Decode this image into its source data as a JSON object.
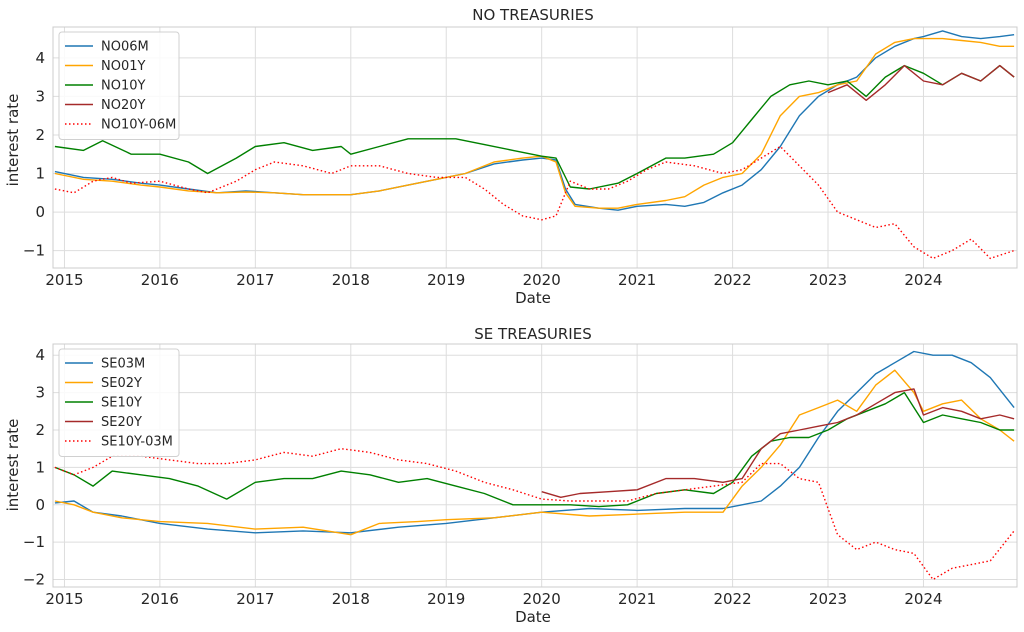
{
  "colors": {
    "blue": "#1f77b4",
    "orange": "#ffa500",
    "green": "#008000",
    "darkred": "#a52a2a",
    "red": "#ff0000",
    "grid": "#dddddd",
    "plot_bg": "#ffffff"
  },
  "chart_data": [
    {
      "type": "line",
      "title": "NO TREASURIES",
      "xlabel": "Date",
      "ylabel": "interest rate",
      "xlim": [
        2014.88,
        2024.98
      ],
      "ylim": [
        -1.45,
        4.8
      ],
      "x_ticks": [
        2015,
        2016,
        2017,
        2018,
        2019,
        2020,
        2021,
        2022,
        2023,
        2024
      ],
      "x_tick_labels": [
        "2015",
        "2016",
        "2017",
        "2018",
        "2019",
        "2020",
        "2021",
        "2022",
        "2023",
        "2024"
      ],
      "y_ticks": [
        -1,
        0,
        1,
        2,
        3,
        4
      ],
      "y_tick_labels": [
        "−1",
        "0",
        "1",
        "2",
        "3",
        "4"
      ],
      "grid": true,
      "legend_position": "upper-left",
      "series": [
        {
          "name": "NO06M",
          "color_key": "blue",
          "style": "solid",
          "x": [
            2014.9,
            2015.2,
            2015.5,
            2015.8,
            2016.0,
            2016.3,
            2016.6,
            2016.9,
            2017.2,
            2017.5,
            2017.8,
            2018.0,
            2018.3,
            2018.6,
            2018.9,
            2019.2,
            2019.5,
            2019.8,
            2020.0,
            2020.15,
            2020.25,
            2020.35,
            2020.6,
            2020.8,
            2021.0,
            2021.3,
            2021.5,
            2021.7,
            2021.9,
            2022.1,
            2022.3,
            2022.5,
            2022.7,
            2022.9,
            2023.1,
            2023.3,
            2023.5,
            2023.7,
            2023.9,
            2024.0,
            2024.2,
            2024.4,
            2024.6,
            2024.8,
            2024.95
          ],
          "y": [
            1.05,
            0.9,
            0.85,
            0.75,
            0.7,
            0.6,
            0.5,
            0.55,
            0.5,
            0.45,
            0.45,
            0.45,
            0.55,
            0.7,
            0.85,
            1.0,
            1.25,
            1.35,
            1.4,
            1.35,
            0.6,
            0.2,
            0.1,
            0.05,
            0.15,
            0.2,
            0.15,
            0.25,
            0.5,
            0.7,
            1.1,
            1.7,
            2.5,
            3.0,
            3.3,
            3.5,
            4.0,
            4.3,
            4.5,
            4.55,
            4.7,
            4.55,
            4.5,
            4.55,
            4.6
          ]
        },
        {
          "name": "NO01Y",
          "color_key": "orange",
          "style": "solid",
          "x": [
            2014.9,
            2015.2,
            2015.5,
            2015.8,
            2016.0,
            2016.3,
            2016.6,
            2016.9,
            2017.2,
            2017.5,
            2017.8,
            2018.0,
            2018.3,
            2018.6,
            2018.9,
            2019.2,
            2019.5,
            2019.8,
            2020.0,
            2020.15,
            2020.25,
            2020.35,
            2020.6,
            2020.8,
            2021.0,
            2021.3,
            2021.5,
            2021.7,
            2021.9,
            2022.1,
            2022.3,
            2022.5,
            2022.7,
            2022.9,
            2023.1,
            2023.3,
            2023.5,
            2023.7,
            2023.9,
            2024.0,
            2024.2,
            2024.4,
            2024.6,
            2024.8,
            2024.95
          ],
          "y": [
            1.0,
            0.85,
            0.8,
            0.7,
            0.65,
            0.55,
            0.5,
            0.52,
            0.5,
            0.45,
            0.45,
            0.45,
            0.55,
            0.7,
            0.85,
            1.0,
            1.3,
            1.4,
            1.45,
            1.3,
            0.5,
            0.15,
            0.1,
            0.1,
            0.2,
            0.3,
            0.4,
            0.7,
            0.9,
            1.0,
            1.5,
            2.5,
            3.0,
            3.1,
            3.3,
            3.4,
            4.1,
            4.4,
            4.5,
            4.5,
            4.5,
            4.45,
            4.4,
            4.3,
            4.3
          ]
        },
        {
          "name": "NO10Y",
          "color_key": "green",
          "style": "solid",
          "x": [
            2014.9,
            2015.2,
            2015.4,
            2015.7,
            2016.0,
            2016.3,
            2016.5,
            2016.8,
            2017.0,
            2017.3,
            2017.6,
            2017.9,
            2018.0,
            2018.3,
            2018.6,
            2018.9,
            2019.1,
            2019.4,
            2019.7,
            2020.0,
            2020.15,
            2020.3,
            2020.5,
            2020.8,
            2021.0,
            2021.3,
            2021.5,
            2021.8,
            2022.0,
            2022.2,
            2022.4,
            2022.6,
            2022.8,
            2023.0,
            2023.2,
            2023.4,
            2023.6,
            2023.8,
            2024.0,
            2024.2,
            2024.4,
            2024.6,
            2024.8,
            2024.95
          ],
          "y": [
            1.7,
            1.6,
            1.85,
            1.5,
            1.5,
            1.3,
            1.0,
            1.4,
            1.7,
            1.8,
            1.6,
            1.7,
            1.5,
            1.7,
            1.9,
            1.9,
            1.9,
            1.75,
            1.6,
            1.45,
            1.4,
            0.65,
            0.6,
            0.75,
            1.0,
            1.4,
            1.4,
            1.5,
            1.8,
            2.4,
            3.0,
            3.3,
            3.4,
            3.3,
            3.4,
            3.0,
            3.5,
            3.8,
            3.6,
            3.3,
            3.6,
            3.4,
            3.8,
            3.5
          ]
        },
        {
          "name": "NO20Y",
          "color_key": "darkred",
          "style": "solid",
          "x": [
            2023.0,
            2023.2,
            2023.4,
            2023.6,
            2023.8,
            2024.0,
            2024.2,
            2024.4,
            2024.6,
            2024.8,
            2024.95
          ],
          "y": [
            3.1,
            3.3,
            2.9,
            3.3,
            3.8,
            3.4,
            3.3,
            3.6,
            3.4,
            3.8,
            3.5
          ]
        },
        {
          "name": "NO10Y-06M",
          "color_key": "red",
          "style": "dotted",
          "x": [
            2014.9,
            2015.1,
            2015.3,
            2015.5,
            2015.7,
            2016.0,
            2016.3,
            2016.5,
            2016.8,
            2017.0,
            2017.2,
            2017.5,
            2017.8,
            2018.0,
            2018.3,
            2018.6,
            2018.9,
            2019.2,
            2019.4,
            2019.6,
            2019.8,
            2020.0,
            2020.15,
            2020.3,
            2020.5,
            2020.7,
            2020.9,
            2021.1,
            2021.3,
            2021.6,
            2021.9,
            2022.1,
            2022.3,
            2022.5,
            2022.7,
            2022.9,
            2023.1,
            2023.3,
            2023.5,
            2023.7,
            2023.9,
            2024.1,
            2024.3,
            2024.5,
            2024.7,
            2024.95
          ],
          "y": [
            0.6,
            0.5,
            0.8,
            0.9,
            0.75,
            0.8,
            0.6,
            0.5,
            0.8,
            1.1,
            1.3,
            1.2,
            1.0,
            1.2,
            1.2,
            1.0,
            0.9,
            0.9,
            0.6,
            0.2,
            -0.1,
            -0.2,
            -0.1,
            0.8,
            0.6,
            0.6,
            0.8,
            1.1,
            1.3,
            1.2,
            1.0,
            1.1,
            1.4,
            1.7,
            1.2,
            0.7,
            0.0,
            -0.2,
            -0.4,
            -0.3,
            -0.9,
            -1.2,
            -1.0,
            -0.7,
            -1.2,
            -1.0
          ]
        }
      ]
    },
    {
      "type": "line",
      "title": "SE TREASURIES",
      "xlabel": "Date",
      "ylabel": "interest rate",
      "xlim": [
        2014.88,
        2024.98
      ],
      "ylim": [
        -2.2,
        4.3
      ],
      "x_ticks": [
        2015,
        2016,
        2017,
        2018,
        2019,
        2020,
        2021,
        2022,
        2023,
        2024
      ],
      "x_tick_labels": [
        "2015",
        "2016",
        "2017",
        "2018",
        "2019",
        "2020",
        "2021",
        "2022",
        "2023",
        "2024"
      ],
      "y_ticks": [
        -2,
        -1,
        0,
        1,
        2,
        3,
        4
      ],
      "y_tick_labels": [
        "−2",
        "−1",
        "0",
        "1",
        "2",
        "3",
        "4"
      ],
      "grid": true,
      "legend_position": "upper-left",
      "series": [
        {
          "name": "SE03M",
          "color_key": "blue",
          "style": "solid",
          "x": [
            2014.9,
            2015.1,
            2015.3,
            2015.6,
            2016.0,
            2016.5,
            2017.0,
            2017.5,
            2018.0,
            2018.5,
            2019.0,
            2019.5,
            2020.0,
            2020.5,
            2021.0,
            2021.5,
            2021.9,
            2022.1,
            2022.3,
            2022.5,
            2022.7,
            2022.9,
            2023.1,
            2023.3,
            2023.5,
            2023.7,
            2023.9,
            2024.1,
            2024.3,
            2024.5,
            2024.7,
            2024.95
          ],
          "y": [
            0.05,
            0.1,
            -0.2,
            -0.3,
            -0.5,
            -0.65,
            -0.75,
            -0.7,
            -0.75,
            -0.6,
            -0.5,
            -0.35,
            -0.2,
            -0.1,
            -0.15,
            -0.1,
            -0.1,
            0.0,
            0.1,
            0.5,
            1.0,
            1.8,
            2.5,
            3.0,
            3.5,
            3.8,
            4.1,
            4.0,
            4.0,
            3.8,
            3.4,
            2.6
          ]
        },
        {
          "name": "SE02Y",
          "color_key": "orange",
          "style": "solid",
          "x": [
            2014.9,
            2015.1,
            2015.3,
            2015.6,
            2016.0,
            2016.5,
            2017.0,
            2017.5,
            2018.0,
            2018.3,
            2018.7,
            2019.0,
            2019.5,
            2020.0,
            2020.5,
            2021.0,
            2021.5,
            2021.9,
            2022.1,
            2022.3,
            2022.5,
            2022.7,
            2022.9,
            2023.1,
            2023.3,
            2023.5,
            2023.7,
            2023.9,
            2024.0,
            2024.2,
            2024.4,
            2024.6,
            2024.8,
            2024.95
          ],
          "y": [
            0.1,
            0.0,
            -0.2,
            -0.35,
            -0.45,
            -0.5,
            -0.65,
            -0.6,
            -0.8,
            -0.5,
            -0.45,
            -0.4,
            -0.35,
            -0.2,
            -0.3,
            -0.25,
            -0.2,
            -0.2,
            0.5,
            1.0,
            1.6,
            2.4,
            2.6,
            2.8,
            2.5,
            3.2,
            3.6,
            3.0,
            2.5,
            2.7,
            2.8,
            2.3,
            2.0,
            1.7
          ]
        },
        {
          "name": "SE10Y",
          "color_key": "green",
          "style": "solid",
          "x": [
            2014.9,
            2015.1,
            2015.3,
            2015.5,
            2015.8,
            2016.1,
            2016.4,
            2016.7,
            2017.0,
            2017.3,
            2017.6,
            2017.9,
            2018.2,
            2018.5,
            2018.8,
            2019.1,
            2019.4,
            2019.7,
            2020.0,
            2020.3,
            2020.6,
            2020.9,
            2021.2,
            2021.5,
            2021.8,
            2022.0,
            2022.2,
            2022.4,
            2022.6,
            2022.8,
            2023.0,
            2023.2,
            2023.4,
            2023.6,
            2023.8,
            2024.0,
            2024.2,
            2024.4,
            2024.6,
            2024.8,
            2024.95
          ],
          "y": [
            1.0,
            0.8,
            0.5,
            0.9,
            0.8,
            0.7,
            0.5,
            0.15,
            0.6,
            0.7,
            0.7,
            0.9,
            0.8,
            0.6,
            0.7,
            0.5,
            0.3,
            0.0,
            0.0,
            0.0,
            -0.05,
            0.0,
            0.3,
            0.4,
            0.3,
            0.6,
            1.3,
            1.7,
            1.8,
            1.8,
            2.0,
            2.3,
            2.5,
            2.7,
            3.0,
            2.2,
            2.4,
            2.3,
            2.2,
            2.0,
            2.0
          ]
        },
        {
          "name": "SE20Y",
          "color_key": "darkred",
          "style": "solid",
          "x": [
            2020.0,
            2020.2,
            2020.4,
            2020.7,
            2021.0,
            2021.3,
            2021.6,
            2021.9,
            2022.1,
            2022.3,
            2022.5,
            2022.7,
            2022.9,
            2023.1,
            2023.3,
            2023.5,
            2023.7,
            2023.9,
            2024.0,
            2024.2,
            2024.4,
            2024.6,
            2024.8,
            2024.95
          ],
          "y": [
            0.35,
            0.2,
            0.3,
            0.35,
            0.4,
            0.7,
            0.7,
            0.6,
            0.7,
            1.5,
            1.9,
            2.0,
            2.1,
            2.2,
            2.4,
            2.7,
            3.0,
            3.1,
            2.4,
            2.6,
            2.5,
            2.3,
            2.4,
            2.3
          ]
        },
        {
          "name": "SE10Y-03M",
          "color_key": "red",
          "style": "dotted",
          "x": [
            2014.9,
            2015.1,
            2015.3,
            2015.5,
            2015.8,
            2016.1,
            2016.4,
            2016.7,
            2017.0,
            2017.3,
            2017.6,
            2017.9,
            2018.2,
            2018.5,
            2018.8,
            2019.1,
            2019.4,
            2019.7,
            2020.0,
            2020.3,
            2020.6,
            2020.9,
            2021.2,
            2021.5,
            2021.8,
            2022.1,
            2022.3,
            2022.5,
            2022.7,
            2022.9,
            2023.1,
            2023.3,
            2023.5,
            2023.7,
            2023.9,
            2024.1,
            2024.3,
            2024.5,
            2024.7,
            2024.95
          ],
          "y": [
            1.0,
            0.8,
            1.0,
            1.3,
            1.3,
            1.2,
            1.1,
            1.1,
            1.2,
            1.4,
            1.3,
            1.5,
            1.4,
            1.2,
            1.1,
            0.9,
            0.6,
            0.4,
            0.15,
            0.1,
            0.1,
            0.1,
            0.3,
            0.4,
            0.5,
            0.6,
            1.1,
            1.1,
            0.7,
            0.6,
            -0.8,
            -1.2,
            -1.0,
            -1.2,
            -1.3,
            -2.0,
            -1.7,
            -1.6,
            -1.5,
            -0.7
          ]
        }
      ]
    }
  ]
}
